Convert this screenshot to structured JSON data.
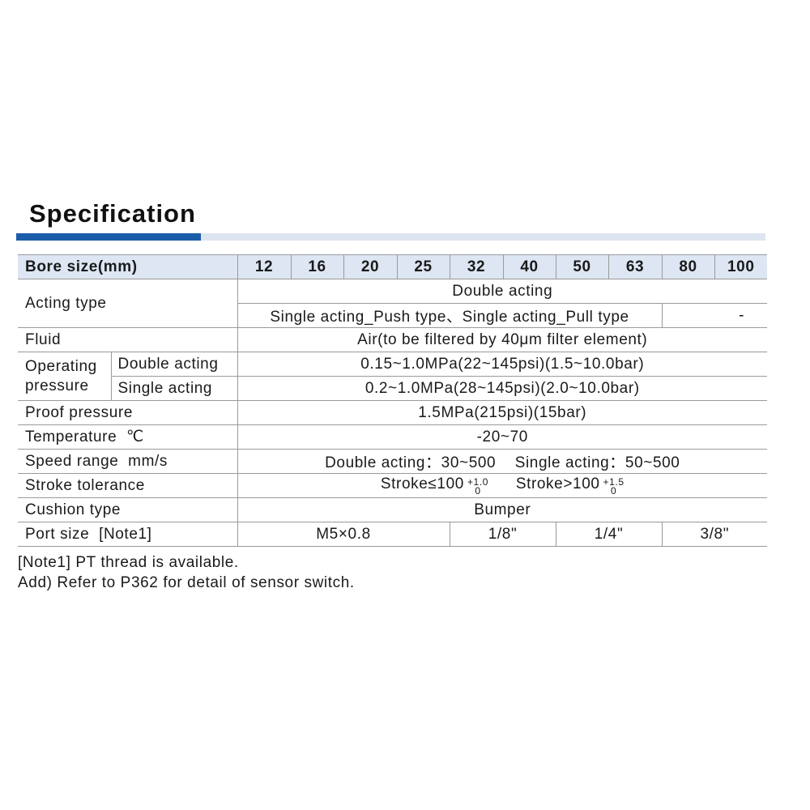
{
  "title": "Specification",
  "header": {
    "label": "Bore size(mm)",
    "bores": [
      "12",
      "16",
      "20",
      "25",
      "32",
      "40",
      "50",
      "63",
      "80",
      "100"
    ]
  },
  "rows": {
    "acting": {
      "label": "Acting type",
      "double": "Double acting",
      "single": "Single acting_Push type、Single acting_Pull type",
      "single_na": "-"
    },
    "fluid": {
      "label": "Fluid",
      "value": "Air(to be filtered by 40μm filter element)"
    },
    "operating": {
      "label_line1": "Operating",
      "label_line2": "pressure",
      "double_label": "Double acting",
      "double_value": "0.15~1.0MPa(22~145psi)(1.5~10.0bar)",
      "single_label": "Single acting",
      "single_value": "0.2~1.0MPa(28~145psi)(2.0~10.0bar)"
    },
    "proof": {
      "label": "Proof pressure",
      "value": "1.5MPa(215psi)(15bar)"
    },
    "temperature": {
      "label": "Temperature  ℃",
      "value": "-20~70"
    },
    "speed": {
      "label": "Speed range  mm/s",
      "value": "Double acting：30~500    Single acting：50~500"
    },
    "stroke": {
      "label": "Stroke tolerance",
      "a": "Stroke≤100",
      "a_upper": "+1.0",
      "a_lower": "0",
      "b": "Stroke>100",
      "b_upper": "+1.5",
      "b_lower": "0"
    },
    "cushion": {
      "label": "Cushion type",
      "value": "Bumper"
    },
    "port": {
      "label": "Port size  [Note1]",
      "values": [
        "M5×0.8",
        "1/8\"",
        "1/4\"",
        "3/8\""
      ]
    }
  },
  "notes": [
    "[Note1] PT thread is available.",
    "Add) Refer to P362 for detail of sensor switch."
  ],
  "colors": {
    "accent": "#1b5ca8",
    "header_bg": "#dde6f2"
  }
}
